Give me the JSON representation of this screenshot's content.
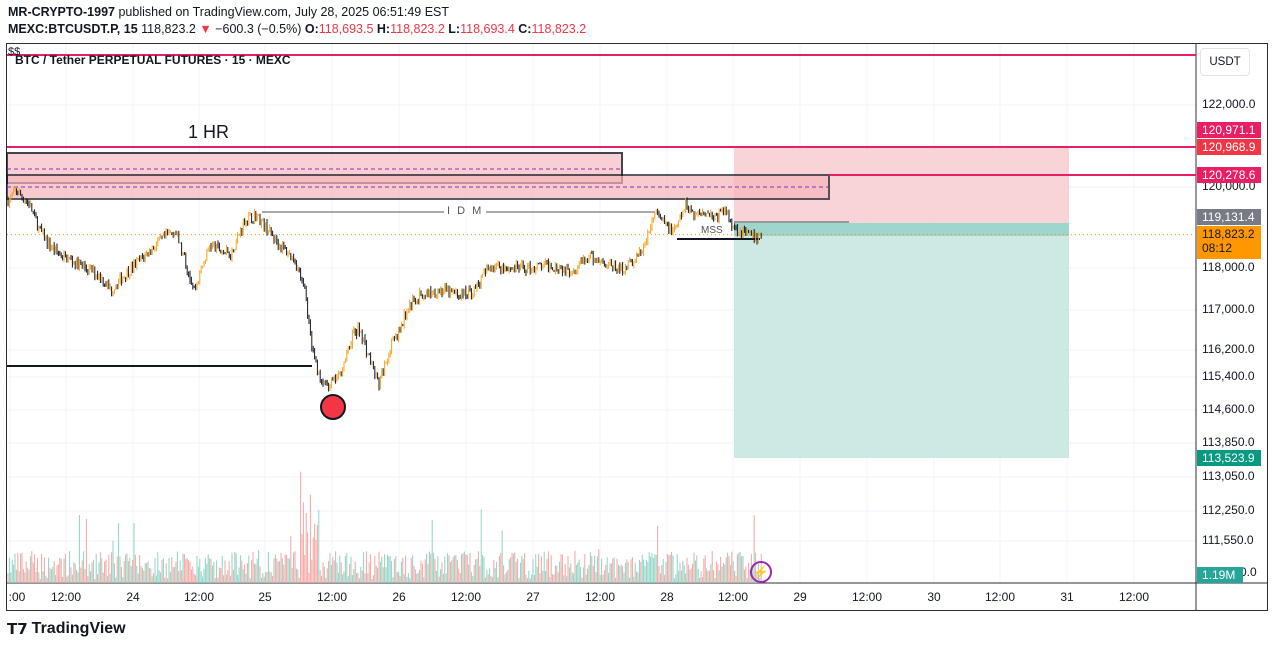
{
  "header": {
    "author": "MR-CRYPTO-1997",
    "published": "published on TradingView.com, July 28, 2025 06:51:49 EST",
    "symbol": "MEXC:BTCUSDT.P, 15",
    "last": "118,823.2",
    "change": "−600.3 (−0.5%)",
    "o_label": "O:",
    "o": "118,693.5",
    "h_label": "H:",
    "h": "118,823.2",
    "l_label": "L:",
    "l": "118,693.4",
    "c_label": "C:",
    "c": "118,823.2"
  },
  "chart_header": {
    "ss": "$$",
    "title": "BTC / Tether PERPETUAL FUTURES · 15 · MEXC"
  },
  "currency": "USDT",
  "colors": {
    "up": "#f7a21b",
    "down": "#131722",
    "stop_zone": "#f7c5c9",
    "target_zone": "#cde9e3",
    "line_red": "#e91e63",
    "vol_up": "#8fd3c5",
    "vol_down": "#f5a6a0"
  },
  "annotations": {
    "timeframe_label": "1 HR",
    "idm": "I D M",
    "mss": "MSS"
  },
  "price_tags": {
    "t1": "120,971.1",
    "t2": "120,968.9",
    "t3": "120,278.6",
    "entry": "119,131.4",
    "current": "118,823.2",
    "countdown": "08:12",
    "target": "113,523.9",
    "volume": "1.19M"
  },
  "logo": "TradingView",
  "chart_data": {
    "type": "candlestick",
    "title": "BTC / Tether PERPETUAL FUTURES · 15 · MEXC",
    "y_ticks": [
      "122,000.0",
      "120,000.0",
      "118,000.0",
      "117,000.0",
      "116,200.0",
      "115,400.0",
      "114,600.0",
      "113,850.0",
      "113,050.0",
      "112,250.0",
      "111,550.0",
      "0.0"
    ],
    "x_ticks": [
      ":00",
      "12:00",
      "24",
      "12:00",
      "25",
      "12:00",
      "26",
      "12:00",
      "27",
      "12:00",
      "28",
      "12:00",
      "29",
      "12:00",
      "30",
      "12:00",
      "31",
      "12:00"
    ],
    "close_series": [
      [
        "07-23 02:00",
        119680
      ],
      [
        "07-23 03:00",
        119926
      ],
      [
        "07-23 05:30",
        119556
      ],
      [
        "07-23 07:15",
        118938
      ],
      [
        "07-23 09:00",
        118568
      ],
      [
        "07-23 11:00",
        118321
      ],
      [
        "07-23 14:30",
        118074
      ],
      [
        "07-23 18:00",
        117833
      ],
      [
        "07-23 20:00",
        117476
      ],
      [
        "07-23 22:30",
        117833
      ],
      [
        "07-24 01:15",
        118198
      ],
      [
        "07-24 05:00",
        118691
      ],
      [
        "07-24 07:30",
        118938
      ],
      [
        "07-24 09:15",
        118198
      ],
      [
        "07-24 11:00",
        117476
      ],
      [
        "07-24 13:45",
        118568
      ],
      [
        "07-24 17:30",
        118321
      ],
      [
        "07-24 20:00",
        119185
      ],
      [
        "07-24 22:00",
        119309
      ],
      [
        "07-24 23:30",
        119062
      ],
      [
        "07-25 02:15",
        118568
      ],
      [
        "07-25 05:00",
        118198
      ],
      [
        "07-25 06:45",
        117476
      ],
      [
        "07-25 08:00",
        116200
      ],
      [
        "07-25 09:30",
        115327
      ],
      [
        "07-25 11:15",
        115206
      ],
      [
        "07-25 13:00",
        115459
      ],
      [
        "07-25 15:15",
        116500
      ],
      [
        "07-25 16:45",
        116600
      ],
      [
        "07-25 18:30",
        115904
      ],
      [
        "07-25 20:00",
        115206
      ],
      [
        "07-25 22:00",
        116200
      ],
      [
        "07-25 23:45",
        116600
      ],
      [
        "07-26 01:30",
        117119
      ],
      [
        "07-26 03:30",
        117357
      ],
      [
        "07-26 07:00",
        117476
      ],
      [
        "07-26 10:30",
        117357
      ],
      [
        "07-26 13:15",
        117476
      ],
      [
        "07-26 16:00",
        118074
      ],
      [
        "07-26 19:30",
        118000
      ],
      [
        "07-26 23:00",
        118000
      ],
      [
        "07-27 02:45",
        118074
      ],
      [
        "07-27 06:15",
        117952
      ],
      [
        "07-27 09:45",
        118247
      ],
      [
        "07-27 12:30",
        118148
      ],
      [
        "07-27 15:15",
        117952
      ],
      [
        "07-27 18:00",
        118198
      ],
      [
        "07-27 19:45",
        118568
      ],
      [
        "07-27 21:30",
        119383
      ],
      [
        "07-27 23:15",
        119062
      ],
      [
        "07-28 01:00",
        118889
      ],
      [
        "07-28 03:00",
        119556
      ],
      [
        "07-28 04:45",
        119309
      ],
      [
        "07-28 06:30",
        119432
      ],
      [
        "07-28 08:15",
        119235
      ],
      [
        "07-28 10:00",
        119432
      ],
      [
        "07-28 11:45",
        118988
      ],
      [
        "07-28 13:30",
        118864
      ],
      [
        "07-28 15:30",
        118741
      ],
      [
        "07-28 16:45",
        118823
      ]
    ],
    "levels": {
      "stop": 120971.1,
      "entry": 119131.4,
      "target": 113523.9,
      "resistance": 120278.6
    },
    "marker": {
      "type": "red-circle",
      "time": "07-25 11:15"
    },
    "grid": true
  }
}
